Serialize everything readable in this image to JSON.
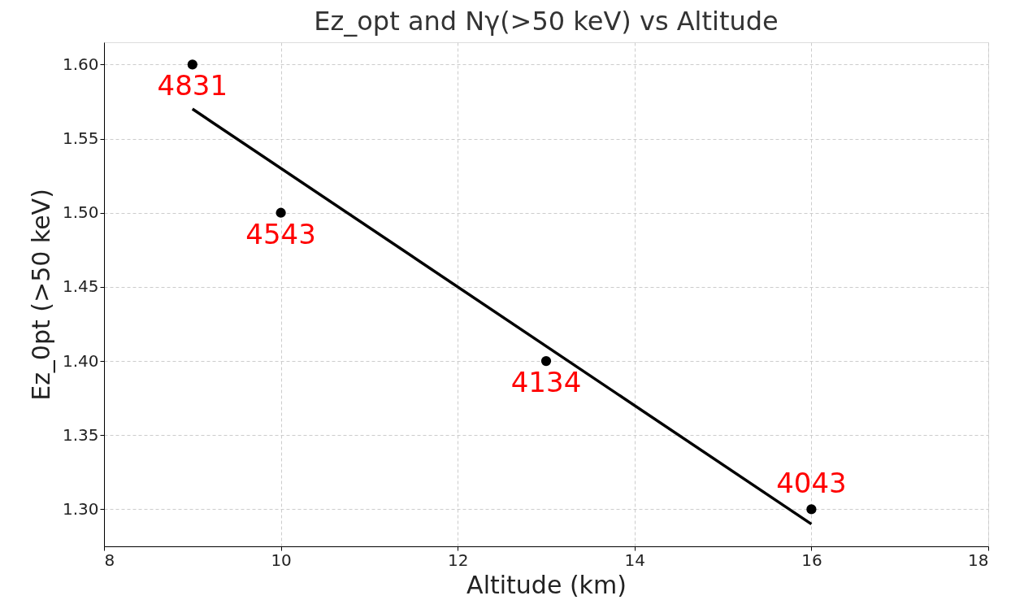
{
  "chart_data": {
    "type": "scatter",
    "title": "Ez_opt and Nγ(>50 keV) vs Altitude",
    "xlabel": "Altitude (km)",
    "ylabel": "Ez_0pt (>50 keV)",
    "x": [
      9,
      10,
      13,
      16
    ],
    "series": [
      {
        "color": "#000000",
        "marker": "circle",
        "values": [
          1.6,
          1.5,
          1.4,
          1.3
        ]
      },
      {
        "type": "line",
        "color": "#000000",
        "marker": "none",
        "line_style": "solid",
        "x": [
          9,
          16
        ],
        "values": [
          1.57,
          1.29
        ]
      }
    ],
    "annotations": [
      {
        "text": "4831",
        "x": 9,
        "y": 1.6
      },
      {
        "text": "4543",
        "x": 10,
        "y": 1.5
      },
      {
        "text": "4134",
        "x": 13,
        "y": 1.4
      },
      {
        "text": "4043",
        "x": 16,
        "y": 1.3
      }
    ],
    "xlim": [
      8,
      18
    ],
    "xticks": [
      8,
      10,
      12,
      14,
      16,
      18
    ],
    "ylim": [
      1.275,
      1.615
    ],
    "yticks": [
      {
        "value": 1.3,
        "label": "1.30"
      },
      {
        "value": 1.35,
        "label": "1.35"
      },
      {
        "value": 1.4,
        "label": "1.40"
      },
      {
        "value": 1.45,
        "label": "1.45"
      },
      {
        "value": 1.5,
        "label": "1.50"
      },
      {
        "value": 1.55,
        "label": "1.55"
      },
      {
        "value": 1.6,
        "label": "1.60"
      }
    ],
    "grid": true
  }
}
